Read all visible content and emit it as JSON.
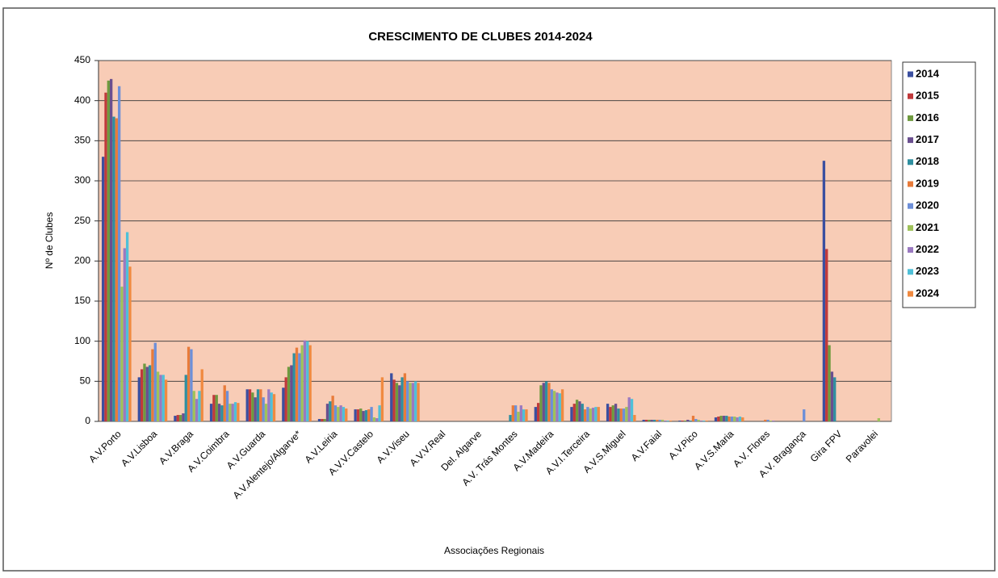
{
  "chart_data": {
    "type": "bar",
    "title": "CRESCIMENTO DE CLUBES 2014-2024",
    "x_label": "Associações Regionais",
    "y_label": "Nº de Clubes",
    "categories": [
      "A.V.Porto",
      "A.V.Lisboa",
      "A.V.Braga",
      "A.V.Coimbra",
      "A.V.Guarda",
      "A.V.Alentejo/Algarve*",
      "A.V.Leiria",
      "A.V.V.Castelo",
      "A.V.Viseu",
      "A.V.V.Real",
      "Del. Algarve",
      "A.V. Trás Montes",
      "A.V.Madeira",
      "A.V.I.Terceira",
      "A.V.S.Miguel",
      "A.V.Faial",
      "A.V.Pico",
      "A.V.S.Maria",
      "A.V. Flores",
      "A.V. Bragança",
      "Gira FPV",
      "Paravolei"
    ],
    "series": [
      {
        "name": "2014",
        "color": "#3b4fa0",
        "values": [
          330,
          55,
          7,
          22,
          40,
          42,
          3,
          15,
          60,
          0,
          0,
          0,
          18,
          18,
          22,
          2,
          1,
          5,
          0,
          0,
          325,
          0
        ]
      },
      {
        "name": "2015",
        "color": "#c0393b",
        "values": [
          410,
          65,
          8,
          33,
          40,
          55,
          3,
          15,
          52,
          0,
          0,
          0,
          23,
          22,
          18,
          2,
          1,
          6,
          0,
          0,
          215,
          0
        ]
      },
      {
        "name": "2016",
        "color": "#6f9a3f",
        "values": [
          425,
          72,
          8,
          33,
          36,
          68,
          3,
          16,
          48,
          0,
          0,
          0,
          45,
          27,
          20,
          2,
          1,
          7,
          0,
          0,
          95,
          0
        ]
      },
      {
        "name": "2017",
        "color": "#6a4f8f",
        "values": [
          427,
          68,
          10,
          22,
          30,
          70,
          22,
          13,
          45,
          0,
          0,
          0,
          48,
          25,
          22,
          2,
          2,
          7,
          0,
          0,
          62,
          0
        ]
      },
      {
        "name": "2018",
        "color": "#2f8fa0",
        "values": [
          380,
          70,
          58,
          20,
          40,
          85,
          25,
          14,
          55,
          0,
          0,
          8,
          50,
          22,
          16,
          2,
          1,
          7,
          0,
          0,
          55,
          0
        ]
      },
      {
        "name": "2019",
        "color": "#e87b3a",
        "values": [
          378,
          90,
          93,
          45,
          40,
          92,
          32,
          15,
          60,
          0,
          0,
          20,
          48,
          15,
          16,
          2,
          7,
          6,
          2,
          0,
          0,
          0
        ]
      },
      {
        "name": "2020",
        "color": "#6d8fd8",
        "values": [
          418,
          98,
          90,
          38,
          30,
          85,
          20,
          18,
          50,
          0,
          0,
          20,
          40,
          18,
          16,
          2,
          3,
          6,
          2,
          15,
          0,
          0
        ]
      },
      {
        "name": "2021",
        "color": "#9fc25a",
        "values": [
          168,
          62,
          38,
          22,
          22,
          95,
          18,
          5,
          48,
          0,
          0,
          12,
          38,
          16,
          18,
          2,
          2,
          6,
          1,
          0,
          0,
          4
        ]
      },
      {
        "name": "2022",
        "color": "#9a79c0",
        "values": [
          216,
          58,
          28,
          22,
          40,
          101,
          20,
          4,
          48,
          0,
          0,
          20,
          36,
          17,
          30,
          1,
          1,
          5,
          1,
          0,
          0,
          0
        ]
      },
      {
        "name": "2023",
        "color": "#4fc0d8",
        "values": [
          236,
          58,
          38,
          24,
          36,
          100,
          18,
          20,
          50,
          0,
          0,
          15,
          35,
          18,
          28,
          1,
          1,
          6,
          0,
          0,
          0,
          0
        ]
      },
      {
        "name": "2024",
        "color": "#f08a40",
        "values": [
          193,
          52,
          65,
          23,
          34,
          95,
          16,
          55,
          48,
          0,
          0,
          15,
          40,
          18,
          8,
          1,
          1,
          5,
          0,
          0,
          0,
          0
        ]
      }
    ],
    "ylim": [
      0,
      450
    ],
    "yticks": [
      0,
      50,
      100,
      150,
      200,
      250,
      300,
      350,
      400,
      450
    ],
    "grid": true
  }
}
